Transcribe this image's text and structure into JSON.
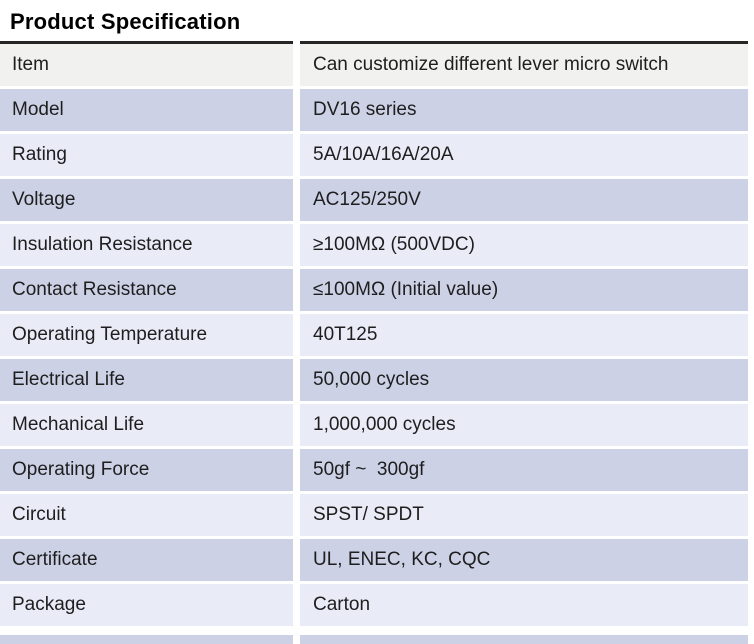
{
  "title": "Product Specification",
  "colors": {
    "header_row_bg": "#f1f1ef",
    "row_dark_bg": "#ccd1e6",
    "row_light_bg": "#e9ebf7",
    "rule": "#262626",
    "text": "#1e1e1e"
  },
  "table": {
    "rows": [
      {
        "label": "Item",
        "value": "Can customize different lever micro switch"
      },
      {
        "label": "Model",
        "value": "DV16 series"
      },
      {
        "label": "Rating",
        "value": "5A/10A/16A/20A"
      },
      {
        "label": "Voltage",
        "value": "AC125/250V"
      },
      {
        "label": "Insulation Resistance",
        "value": "≥100MΩ (500VDC)"
      },
      {
        "label": "Contact Resistance",
        "value": "≤100MΩ (Initial value)"
      },
      {
        "label": "Operating Temperature",
        "value": "40T125"
      },
      {
        "label": "Electrical Life",
        "value": "50,000 cycles"
      },
      {
        "label": "Mechanical Life",
        "value": "1,000,000 cycles"
      },
      {
        "label": "Operating Force",
        "value": "50gf ~  300gf"
      },
      {
        "label": "Circuit",
        "value": "SPST/ SPDT"
      },
      {
        "label": "Certificate",
        "value": "UL, ENEC, KC, CQC"
      },
      {
        "label": "Package",
        "value": "Carton"
      }
    ]
  }
}
